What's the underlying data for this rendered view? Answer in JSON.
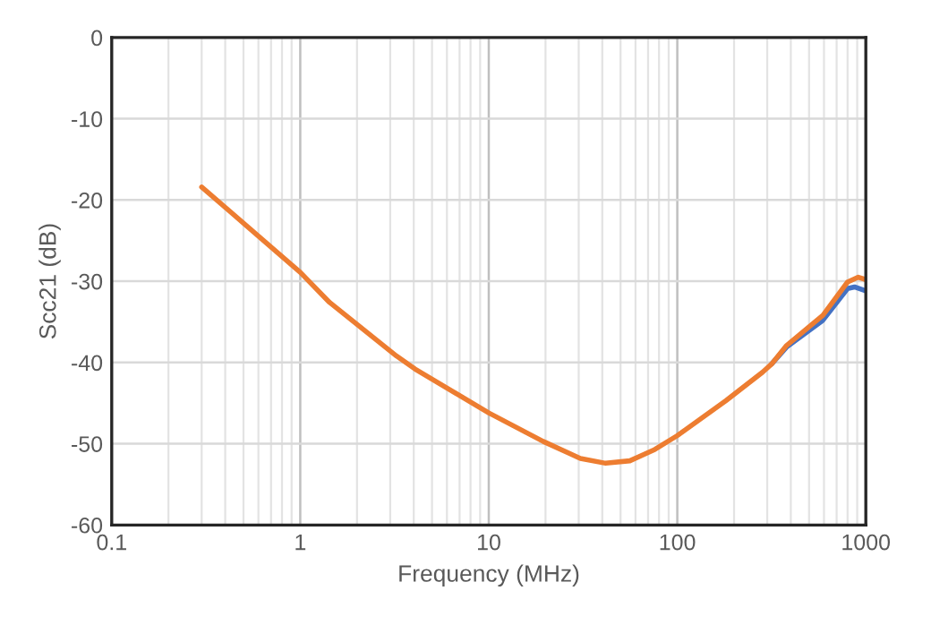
{
  "chart_data": {
    "type": "line",
    "xlabel": "Frequency (MHz)",
    "ylabel": "Scc21 (dB)",
    "log": "x",
    "xlim": [
      0.1,
      1000
    ],
    "xticks": [
      0.1,
      1,
      10,
      100,
      1000
    ],
    "ylim": [
      -60,
      0
    ],
    "yticks": [
      -60,
      -50,
      -40,
      -30,
      -20,
      -10,
      0
    ],
    "grid": true,
    "legend": false,
    "marker": "none",
    "line_style": "solid",
    "series": [
      {
        "color": "#4472c4",
        "x": [
          316,
          380,
          592,
          800,
          871,
          1000
        ],
        "values": [
          -40.2,
          -38.1,
          -34.8,
          -30.9,
          -30.7,
          -31.2
        ]
      },
      {
        "color": "#ed7d31",
        "x": [
          0.3,
          1,
          1.43,
          3.24,
          4.06,
          10,
          19.4,
          30.6,
          41.7,
          56,
          76,
          100,
          181,
          283,
          316,
          380,
          592,
          800,
          912,
          1000
        ],
        "values": [
          -18.4,
          -28.9,
          -32.6,
          -39.2,
          -40.8,
          -46.2,
          -49.7,
          -51.8,
          -52.4,
          -52.1,
          -50.7,
          -49.0,
          -44.7,
          -41.2,
          -40.2,
          -37.9,
          -34.2,
          -30.1,
          -29.5,
          -29.8
        ]
      }
    ]
  }
}
